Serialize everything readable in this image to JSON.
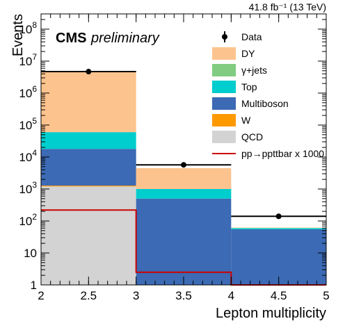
{
  "chart_data": {
    "type": "bar",
    "stacked": true,
    "title": "",
    "lumi_label": "41.8 fb⁻¹ (13 TeV)",
    "cms_label": "CMS",
    "cms_extra_label": "preliminary",
    "xlabel": "Lepton multiplicity",
    "ylabel": "Events",
    "xlim": [
      2,
      5
    ],
    "ylim": [
      1,
      300000000
    ],
    "log_y": true,
    "grid": false,
    "legend_position": "top-right",
    "bin_edges": [
      2,
      3,
      4,
      5
    ],
    "x_ticks": [
      "2",
      "2.5",
      "3",
      "3.5",
      "4",
      "4.5",
      "5"
    ],
    "y_ticks": [
      {
        "value": 1,
        "base": "1",
        "exp": ""
      },
      {
        "value": 10,
        "base": "10",
        "exp": ""
      },
      {
        "value": 100,
        "base": "10",
        "exp": "2"
      },
      {
        "value": 1000,
        "base": "10",
        "exp": "3"
      },
      {
        "value": 10000,
        "base": "10",
        "exp": "4"
      },
      {
        "value": 100000,
        "base": "10",
        "exp": "5"
      },
      {
        "value": 1000000,
        "base": "10",
        "exp": "6"
      },
      {
        "value": 10000000,
        "base": "10",
        "exp": "7"
      },
      {
        "value": 100000000,
        "base": "10",
        "exp": "8"
      }
    ],
    "stack": [
      {
        "name": "QCD",
        "color": "#d3d3d3",
        "values": [
          1200,
          0,
          0
        ]
      },
      {
        "name": "W",
        "color": "#ff9900",
        "values": [
          80,
          0,
          0
        ]
      },
      {
        "name": "Multiboson",
        "color": "#3c6ab4",
        "values": [
          16700,
          500,
          55
        ]
      },
      {
        "name": "Top",
        "color": "#00cdcd",
        "values": [
          42000,
          500,
          5
        ]
      },
      {
        "name": "γ+jets",
        "color": "#80cc80",
        "values": [
          0,
          0,
          0
        ]
      },
      {
        "name": "DY",
        "color": "#fdc38e",
        "values": [
          4540000,
          3500,
          2
        ]
      }
    ],
    "data": {
      "name": "Data",
      "x": [
        2.5,
        3.5,
        4.5
      ],
      "y": [
        4700000,
        5700,
        140
      ]
    },
    "signal": {
      "name": "pp→ppttbar x 1000",
      "color": "#cc0000",
      "values": [
        220,
        2.5,
        1
      ]
    },
    "legend": [
      {
        "label": "Data",
        "kind": "marker"
      },
      {
        "label": "DY",
        "kind": "box",
        "color": "#fdc38e"
      },
      {
        "label": "γ+jets",
        "kind": "box",
        "color": "#80cc80"
      },
      {
        "label": "Top",
        "kind": "box",
        "color": "#00cdcd"
      },
      {
        "label": "Multiboson",
        "kind": "box",
        "color": "#3c6ab4"
      },
      {
        "label": "W",
        "kind": "box",
        "color": "#ff9900"
      },
      {
        "label": "QCD",
        "kind": "box",
        "color": "#d3d3d3"
      },
      {
        "label": "pp→ppttbar x 1000",
        "kind": "line",
        "color": "#cc0000"
      }
    ]
  }
}
